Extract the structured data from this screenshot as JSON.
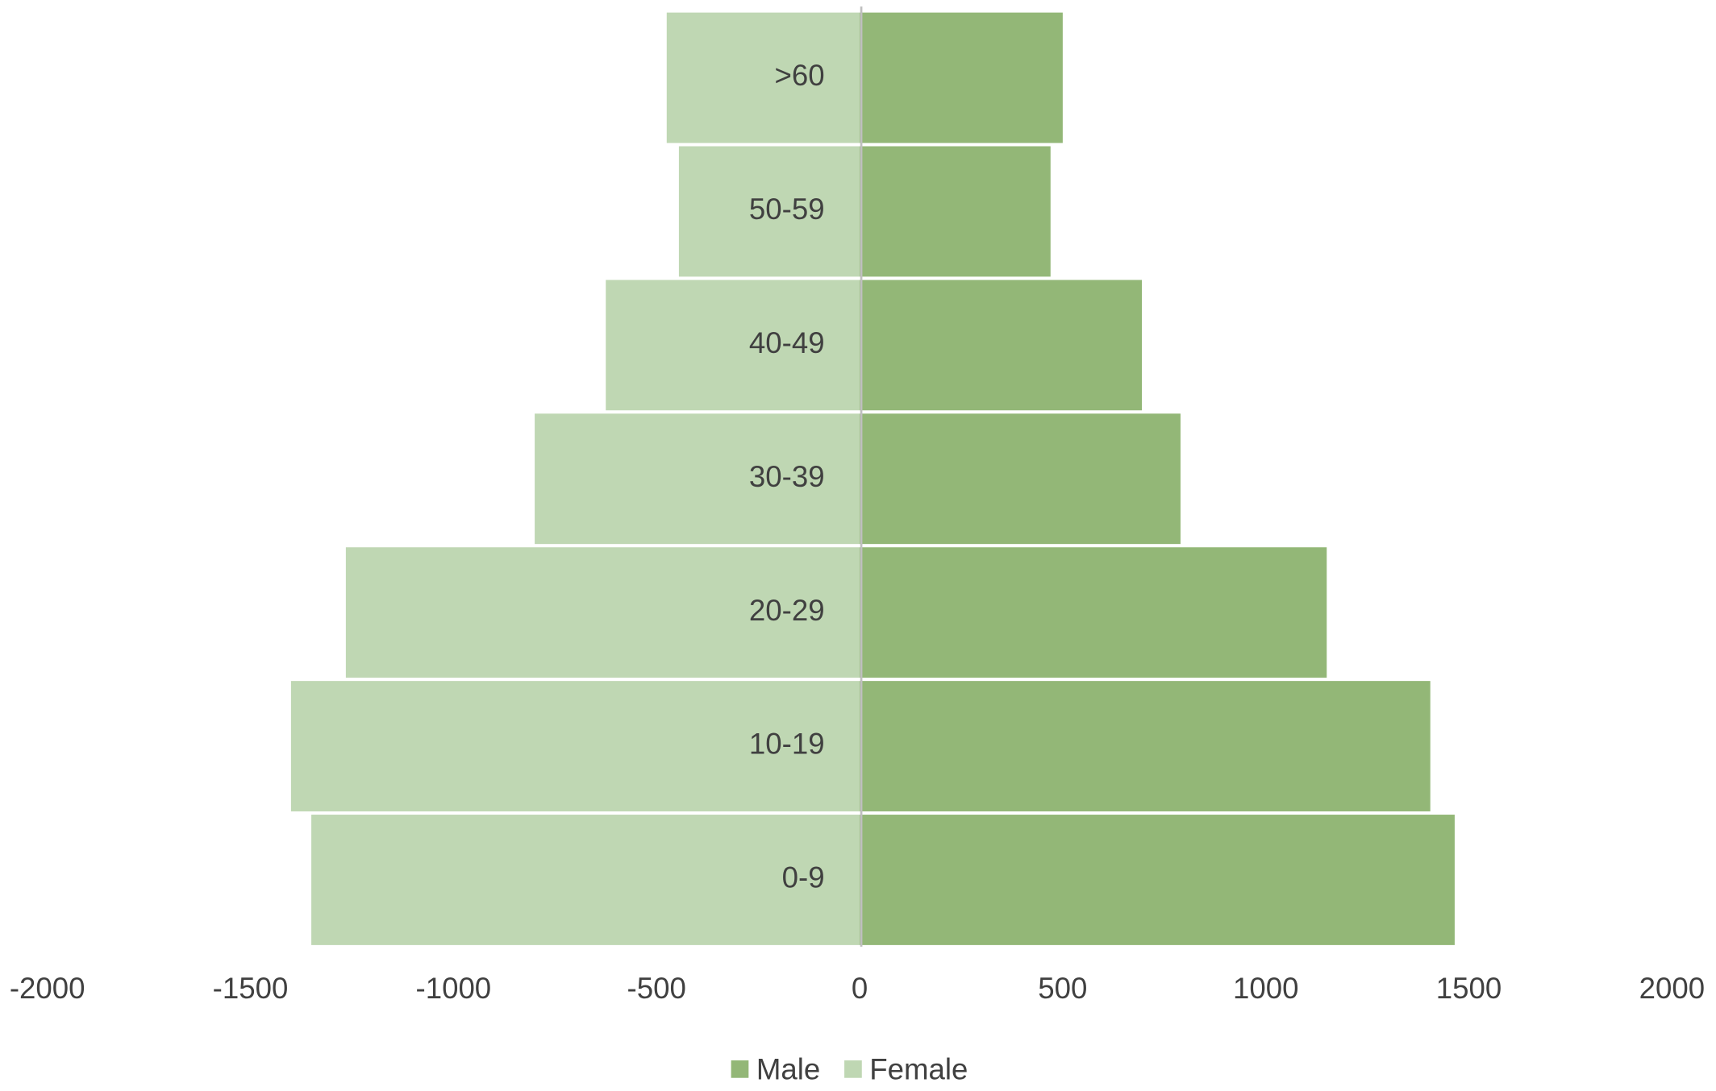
{
  "chart_data": {
    "type": "bar",
    "orientation": "horizontal",
    "categories": [
      "0-9",
      "10-19",
      "20-29",
      "30-39",
      "40-49",
      "50-59",
      ">60"
    ],
    "series": [
      {
        "name": "Male",
        "color": "#93b777",
        "values": [
          1465,
          1405,
          1150,
          790,
          695,
          470,
          500
        ]
      },
      {
        "name": "Female",
        "color": "#bfd7b3",
        "values": [
          -1350,
          -1400,
          -1265,
          -800,
          -625,
          -445,
          -475
        ]
      }
    ],
    "xlim": [
      -2000,
      2000
    ],
    "xticks": [
      -2000,
      -1500,
      -1000,
      -500,
      0,
      500,
      1000,
      1500,
      2000
    ],
    "legend": "bottom"
  }
}
